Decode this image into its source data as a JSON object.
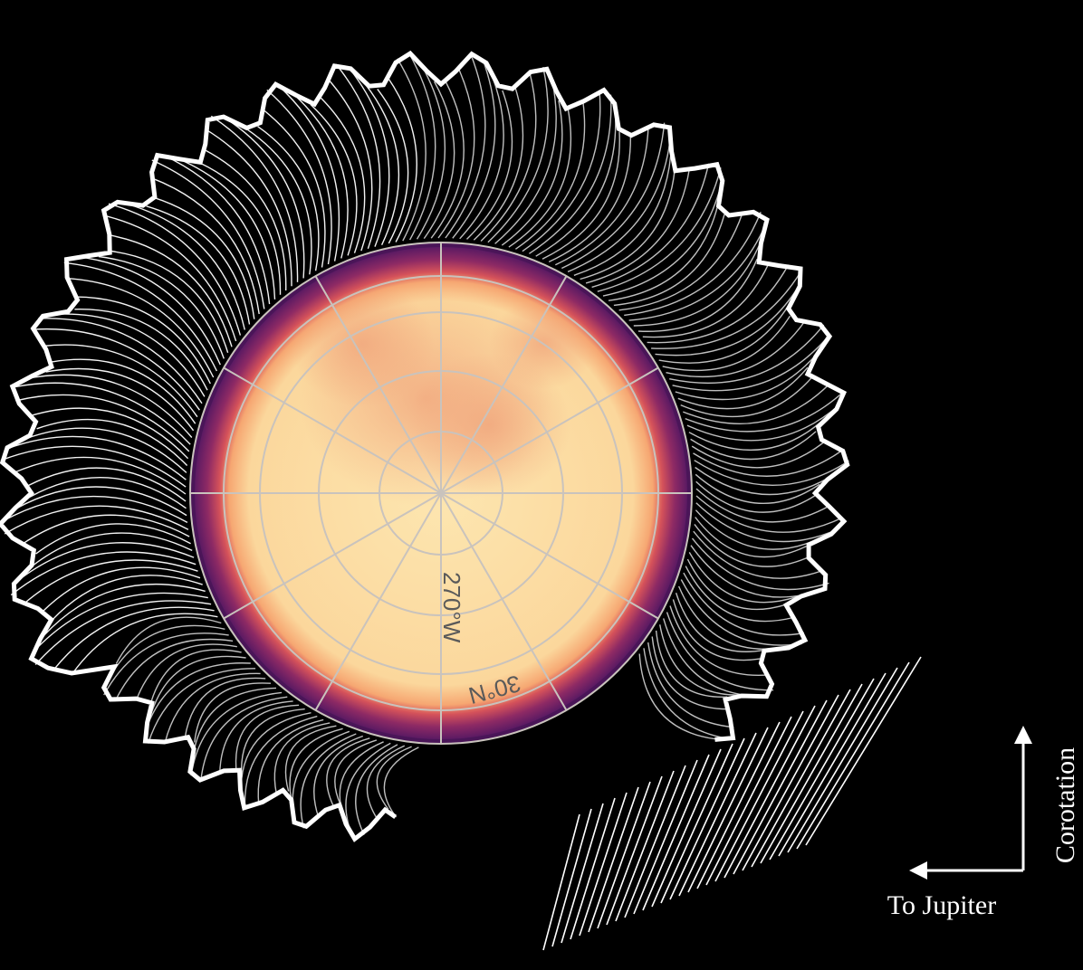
{
  "figure": {
    "grid_labels": {
      "longitude": "270°W",
      "latitude": "30°N"
    },
    "compass": {
      "horizontal_label": "To Jupiter",
      "vertical_label": "Corotation"
    },
    "colors": {
      "background": "#000000",
      "disk_center": "#fde2a6",
      "disk_mid": "#f9c98d",
      "dark_features": "#f2a77a",
      "limb_rim": "#6b1c66",
      "limb_glow": "#b23a60",
      "grid": "#c9c3bd",
      "field_lines": "#ffffff"
    }
  }
}
